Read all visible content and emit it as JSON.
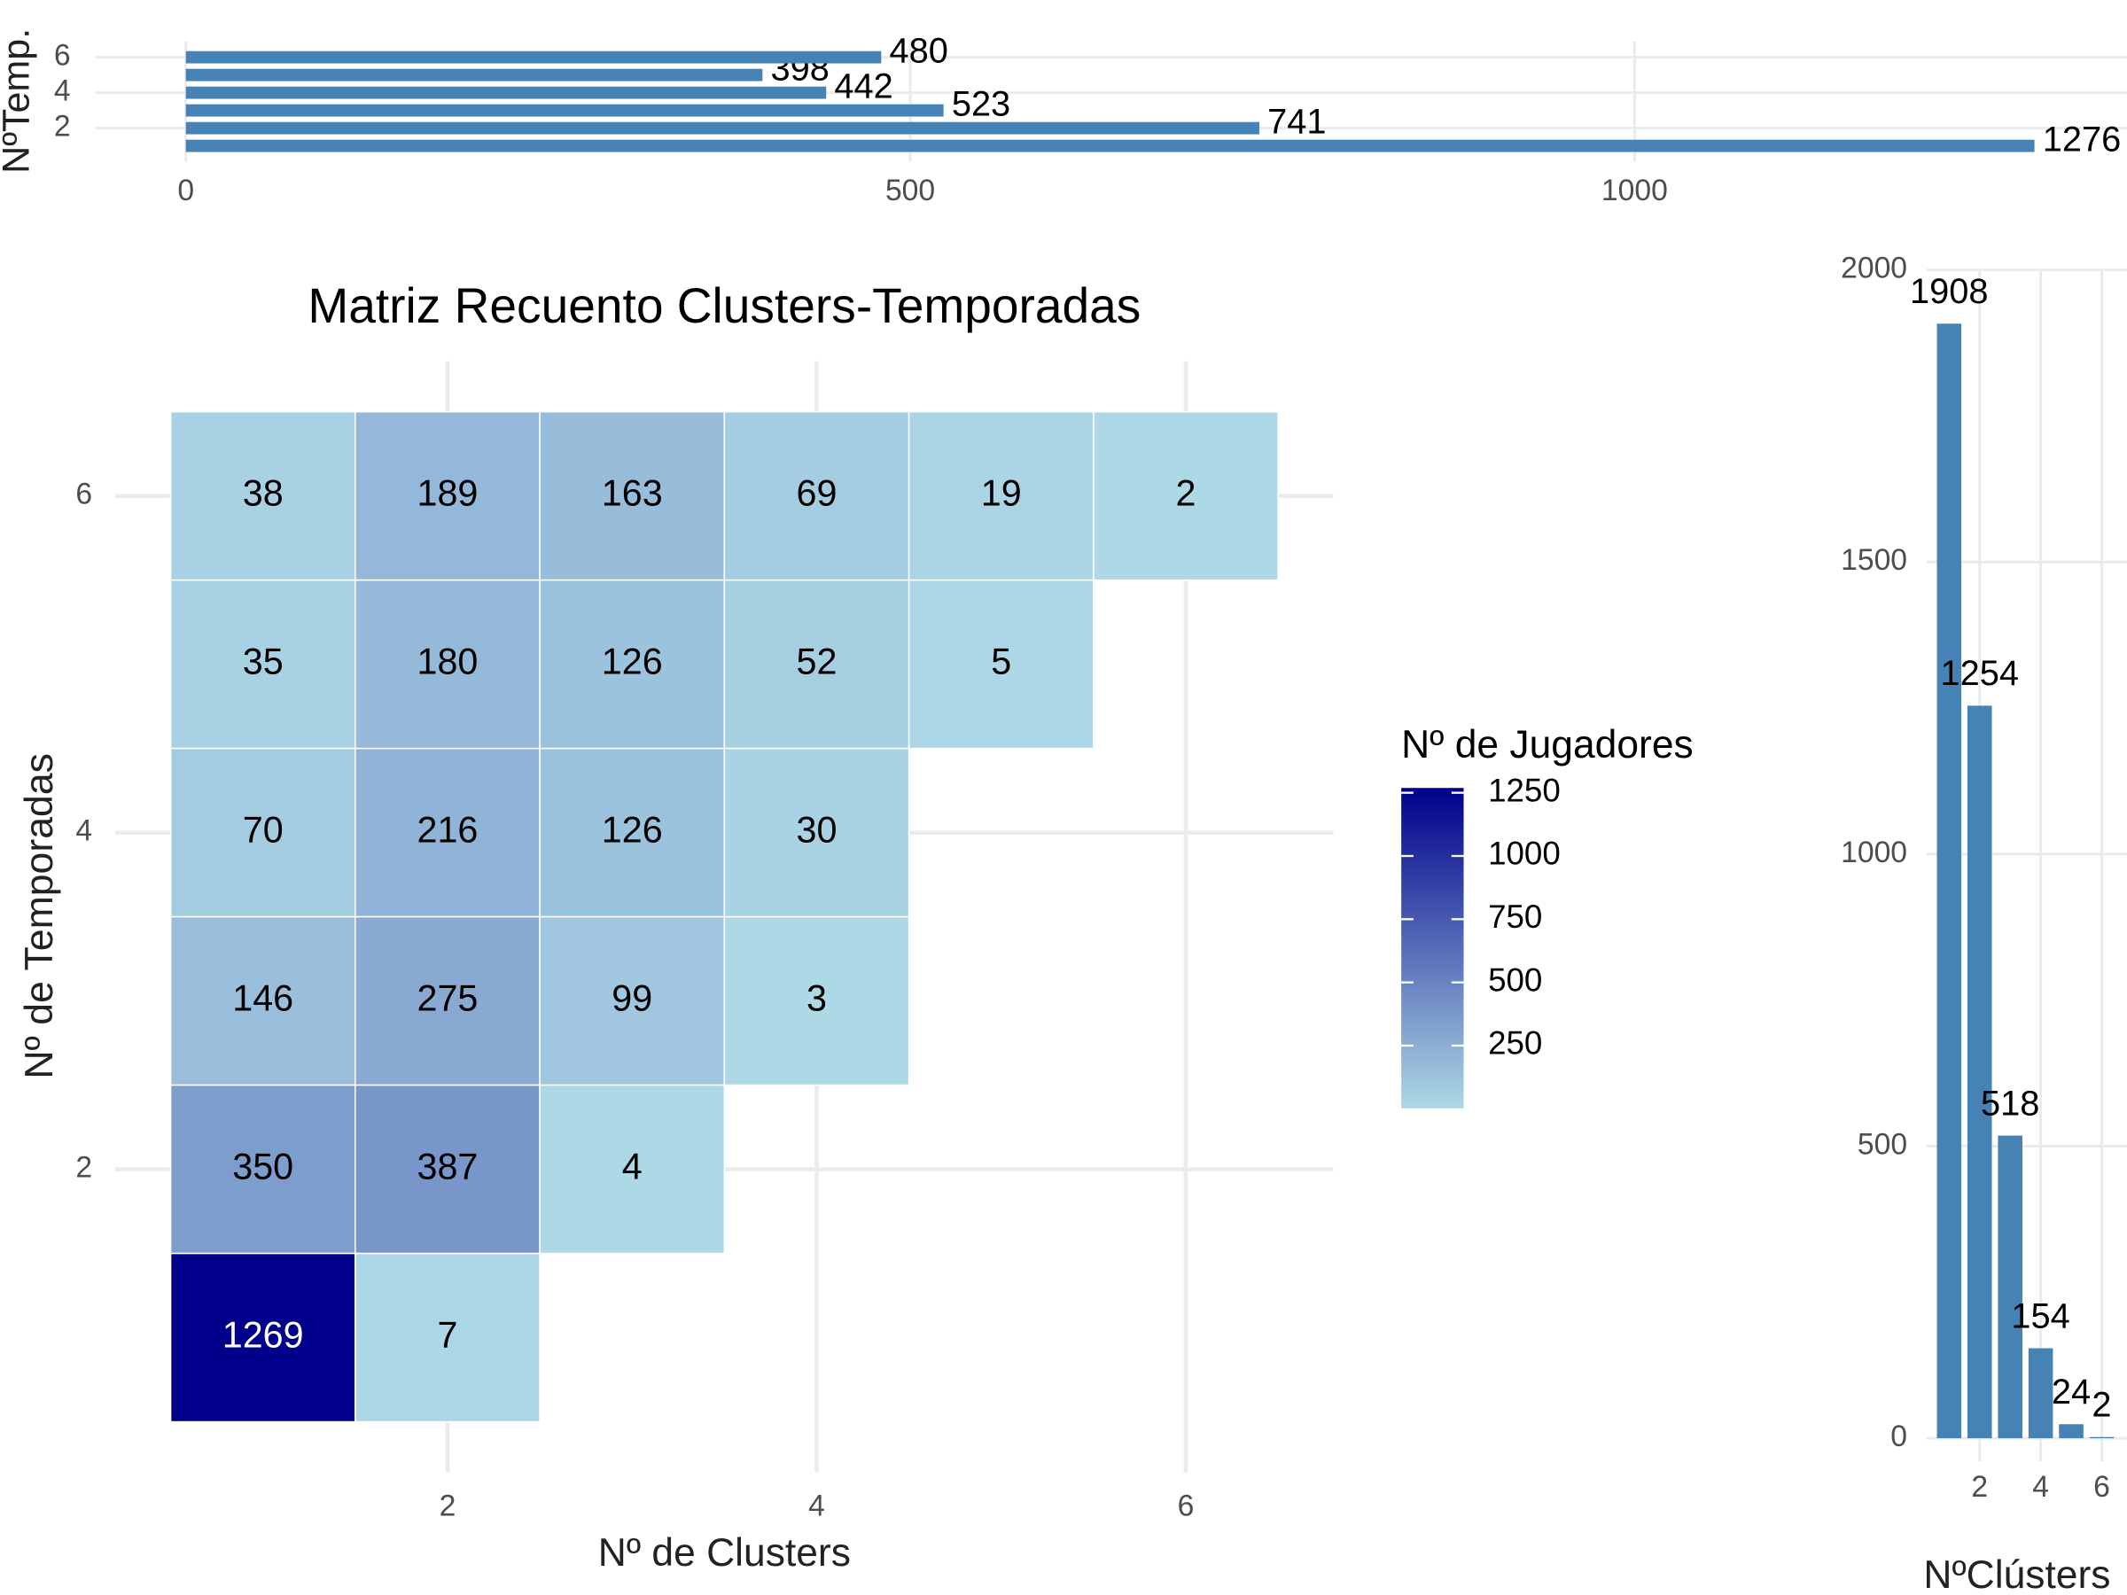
{
  "chart_data": [
    {
      "type": "hbar",
      "y_label": "NºTemp.",
      "categories": [
        1,
        2,
        3,
        4,
        5,
        6
      ],
      "values": [
        1276,
        741,
        523,
        442,
        398,
        480
      ],
      "color": "#4682b4",
      "xlim": [
        0,
        1340
      ],
      "xticks": [
        0,
        500,
        1000
      ],
      "ylim": [
        0.5,
        6.5
      ],
      "yticks": [
        2,
        4,
        6
      ],
      "grid": true
    },
    {
      "type": "heatmap",
      "title": "Matriz Recuento Clusters-Temporadas",
      "x_label": "Nº de Clusters",
      "y_label": "Nº de Temporadas",
      "x": [
        1,
        2,
        3,
        4,
        5,
        6,
        1,
        2,
        3,
        4,
        5,
        1,
        2,
        3,
        4,
        1,
        2,
        3,
        4,
        1,
        2,
        3,
        1,
        2
      ],
      "y": [
        6,
        6,
        6,
        6,
        6,
        6,
        5,
        5,
        5,
        5,
        5,
        4,
        4,
        4,
        4,
        3,
        3,
        3,
        3,
        2,
        2,
        2,
        1,
        1
      ],
      "values": [
        38,
        189,
        163,
        69,
        19,
        2,
        35,
        180,
        126,
        52,
        5,
        70,
        216,
        126,
        30,
        146,
        275,
        99,
        3,
        350,
        387,
        4,
        1269,
        7
      ],
      "xlim": [
        0.2,
        6.8
      ],
      "xticks": [
        2,
        4,
        6
      ],
      "ylim": [
        0.2,
        6.8
      ],
      "yticks": [
        2,
        4,
        6
      ],
      "grid": true,
      "color_low": "#add8e6",
      "color_high": "#00008b",
      "legend_title": "Nº de Jugadores",
      "legend_ticks": [
        250,
        500,
        750,
        1000,
        1250
      ]
    },
    {
      "type": "bar",
      "x_label": "NºClústers",
      "x": [
        1,
        2,
        3,
        4,
        5,
        6
      ],
      "values": [
        1908,
        1254,
        518,
        154,
        24,
        2
      ],
      "color": "#4682b4",
      "xlim": [
        0.25,
        6.85
      ],
      "xticks": [
        2,
        4,
        6
      ],
      "ylim": [
        0,
        2000
      ],
      "yticks": [
        0,
        500,
        1000,
        1500,
        2000
      ],
      "grid": true
    }
  ]
}
